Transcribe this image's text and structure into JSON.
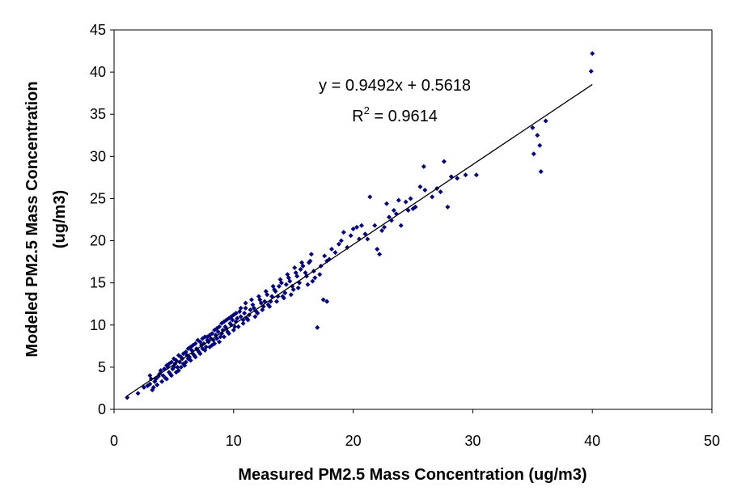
{
  "chart_data": {
    "type": "scatter",
    "title": "",
    "xlabel": "Measured PM2.5 Mass Concentration (ug/m3)",
    "ylabel_line1": "Modeled PM2.5 Mass Concentration",
    "ylabel_line2": "(ug/m3)",
    "xlim": [
      0,
      50
    ],
    "ylim": [
      0,
      45
    ],
    "xticks": [
      "0",
      "10",
      "20",
      "30",
      "40",
      "50"
    ],
    "yticks": [
      "0",
      "5",
      "10",
      "15",
      "20",
      "25",
      "30",
      "35",
      "40",
      "45"
    ],
    "grid": false,
    "legend": "none",
    "marker_color": "#000080",
    "trendline": {
      "slope": 0.9492,
      "intercept": 0.5618,
      "x_range": [
        1,
        40
      ],
      "equation": "y = 0.9492x + 0.5618",
      "r2_prefix": "R",
      "r2_exp": "2",
      "r2_suffix": " = 0.9614"
    },
    "points": [
      [
        1.1,
        1.4
      ],
      [
        2.0,
        1.9
      ],
      [
        2.5,
        2.6
      ],
      [
        3.0,
        3.0
      ],
      [
        3.2,
        2.3
      ],
      [
        3.0,
        4.0
      ],
      [
        3.5,
        3.6
      ],
      [
        3.8,
        4.2
      ],
      [
        4.0,
        3.3
      ],
      [
        4.2,
        4.8
      ],
      [
        4.4,
        5.2
      ],
      [
        4.6,
        4.4
      ],
      [
        4.8,
        5.6
      ],
      [
        5.0,
        5.0
      ],
      [
        5.2,
        5.8
      ],
      [
        5.4,
        4.6
      ],
      [
        5.6,
        6.2
      ],
      [
        5.8,
        5.4
      ],
      [
        6.0,
        6.8
      ],
      [
        6.2,
        6.0
      ],
      [
        6.4,
        7.4
      ],
      [
        6.6,
        6.6
      ],
      [
        6.8,
        7.8
      ],
      [
        7.0,
        7.0
      ],
      [
        7.2,
        8.0
      ],
      [
        7.4,
        7.2
      ],
      [
        7.6,
        8.6
      ],
      [
        7.8,
        8.2
      ],
      [
        8.0,
        8.8
      ],
      [
        8.2,
        7.6
      ],
      [
        8.4,
        9.4
      ],
      [
        8.6,
        8.4
      ],
      [
        8.8,
        9.8
      ],
      [
        9.0,
        9.0
      ],
      [
        9.2,
        10.4
      ],
      [
        9.4,
        9.6
      ],
      [
        9.6,
        10.8
      ],
      [
        9.8,
        10.0
      ],
      [
        10.0,
        11.2
      ],
      [
        10.2,
        10.4
      ],
      [
        10.5,
        11.6
      ],
      [
        10.8,
        10.6
      ],
      [
        11.0,
        12.0
      ],
      [
        11.3,
        11.2
      ],
      [
        11.6,
        12.4
      ],
      [
        11.9,
        11.6
      ],
      [
        12.2,
        13.0
      ],
      [
        12.5,
        12.2
      ],
      [
        12.8,
        13.6
      ],
      [
        13.1,
        12.8
      ],
      [
        13.4,
        14.2
      ],
      [
        13.7,
        13.4
      ],
      [
        14.0,
        15.0
      ],
      [
        14.3,
        13.8
      ],
      [
        14.6,
        15.6
      ],
      [
        14.9,
        14.6
      ],
      [
        15.2,
        16.2
      ],
      [
        15.5,
        15.0
      ],
      [
        15.8,
        17.0
      ],
      [
        16.1,
        15.8
      ],
      [
        16.4,
        17.6
      ],
      [
        16.7,
        16.4
      ],
      [
        17.0,
        9.7
      ],
      [
        17.5,
        13.0
      ],
      [
        17.8,
        12.8
      ],
      [
        18.0,
        17.8
      ],
      [
        18.5,
        18.6
      ],
      [
        19.0,
        20.0
      ],
      [
        19.5,
        19.2
      ],
      [
        20.0,
        21.4
      ],
      [
        20.5,
        20.2
      ],
      [
        21.0,
        20.8
      ],
      [
        21.4,
        25.2
      ],
      [
        21.8,
        21.8
      ],
      [
        22.0,
        19.0
      ],
      [
        22.4,
        21.2
      ],
      [
        22.8,
        24.4
      ],
      [
        23.2,
        22.4
      ],
      [
        23.6,
        23.2
      ],
      [
        24.0,
        21.8
      ],
      [
        24.4,
        24.6
      ],
      [
        24.8,
        25.0
      ],
      [
        25.2,
        24.0
      ],
      [
        25.6,
        26.4
      ],
      [
        25.9,
        28.8
      ],
      [
        26.6,
        25.2
      ],
      [
        27.0,
        26.2
      ],
      [
        27.6,
        29.4
      ],
      [
        27.9,
        24.0
      ],
      [
        28.7,
        27.4
      ],
      [
        29.4,
        27.8
      ],
      [
        30.3,
        27.8
      ],
      [
        35.0,
        33.4
      ],
      [
        35.1,
        30.3
      ],
      [
        35.4,
        32.5
      ],
      [
        35.6,
        31.3
      ],
      [
        35.7,
        28.2
      ],
      [
        36.1,
        34.2
      ],
      [
        39.9,
        40.1
      ],
      [
        40.0,
        42.2
      ],
      [
        3.4,
        3.3
      ],
      [
        3.6,
        2.9
      ],
      [
        4.1,
        4.0
      ],
      [
        4.3,
        3.7
      ],
      [
        4.5,
        5.0
      ],
      [
        4.7,
        4.2
      ],
      [
        4.9,
        4.8
      ],
      [
        5.1,
        5.4
      ],
      [
        5.3,
        5.0
      ],
      [
        5.5,
        5.6
      ],
      [
        5.7,
        6.0
      ],
      [
        5.9,
        5.2
      ],
      [
        6.1,
        6.4
      ],
      [
        6.3,
        6.2
      ],
      [
        6.5,
        7.0
      ],
      [
        6.7,
        6.4
      ],
      [
        6.9,
        7.2
      ],
      [
        7.1,
        6.8
      ],
      [
        7.3,
        7.6
      ],
      [
        7.5,
        7.8
      ],
      [
        7.7,
        7.4
      ],
      [
        7.9,
        8.0
      ],
      [
        8.1,
        8.4
      ],
      [
        8.3,
        8.2
      ],
      [
        8.5,
        8.8
      ],
      [
        8.7,
        9.2
      ],
      [
        8.9,
        8.6
      ],
      [
        9.1,
        9.4
      ],
      [
        9.3,
        9.8
      ],
      [
        9.5,
        9.2
      ],
      [
        9.7,
        10.2
      ],
      [
        9.9,
        10.6
      ],
      [
        10.1,
        9.8
      ],
      [
        10.3,
        10.8
      ],
      [
        10.6,
        11.0
      ],
      [
        10.9,
        11.4
      ],
      [
        11.1,
        10.8
      ],
      [
        11.4,
        11.8
      ],
      [
        11.7,
        12.0
      ],
      [
        12.0,
        11.4
      ],
      [
        12.3,
        12.6
      ],
      [
        12.6,
        12.8
      ],
      [
        12.9,
        12.4
      ],
      [
        13.2,
        13.4
      ],
      [
        13.5,
        14.0
      ],
      [
        13.8,
        14.6
      ],
      [
        14.1,
        13.4
      ],
      [
        14.4,
        14.8
      ],
      [
        14.7,
        15.2
      ],
      [
        15.0,
        14.2
      ],
      [
        15.3,
        15.8
      ],
      [
        15.6,
        16.6
      ],
      [
        16.0,
        16.2
      ],
      [
        16.3,
        17.4
      ],
      [
        16.6,
        15.2
      ],
      [
        17.2,
        16.0
      ],
      [
        17.6,
        18.2
      ],
      [
        18.2,
        19.0
      ],
      [
        18.8,
        19.6
      ],
      [
        19.2,
        21.0
      ],
      [
        19.8,
        20.6
      ],
      [
        20.3,
        21.6
      ],
      [
        20.7,
        21.8
      ],
      [
        21.2,
        20.2
      ],
      [
        22.2,
        18.4
      ],
      [
        22.6,
        21.6
      ],
      [
        23.0,
        22.8
      ],
      [
        23.4,
        23.6
      ],
      [
        23.8,
        24.8
      ],
      [
        24.6,
        23.6
      ],
      [
        25.0,
        23.8
      ],
      [
        26.0,
        26.0
      ],
      [
        27.3,
        25.8
      ],
      [
        28.2,
        27.6
      ],
      [
        2.8,
        2.8
      ],
      [
        3.1,
        3.6
      ],
      [
        3.3,
        2.6
      ],
      [
        3.7,
        3.9
      ],
      [
        3.9,
        4.6
      ],
      [
        4.4,
        3.6
      ],
      [
        4.6,
        5.4
      ],
      [
        4.8,
        4.0
      ],
      [
        5.0,
        6.0
      ],
      [
        5.2,
        4.4
      ],
      [
        5.4,
        6.4
      ],
      [
        5.6,
        5.0
      ],
      [
        5.8,
        6.6
      ],
      [
        6.0,
        5.6
      ],
      [
        6.2,
        7.2
      ],
      [
        6.4,
        5.8
      ],
      [
        6.6,
        7.6
      ],
      [
        6.8,
        6.2
      ],
      [
        7.0,
        8.2
      ],
      [
        7.2,
        6.6
      ],
      [
        7.4,
        8.4
      ],
      [
        7.6,
        7.0
      ],
      [
        7.8,
        8.6
      ],
      [
        8.0,
        7.4
      ],
      [
        8.2,
        9.0
      ],
      [
        8.4,
        7.8
      ],
      [
        8.6,
        9.6
      ],
      [
        8.8,
        8.0
      ],
      [
        9.0,
        10.2
      ],
      [
        9.2,
        8.6
      ],
      [
        9.4,
        10.6
      ],
      [
        9.6,
        9.0
      ],
      [
        9.8,
        11.0
      ],
      [
        10.0,
        9.4
      ],
      [
        10.2,
        11.4
      ],
      [
        10.4,
        9.8
      ],
      [
        10.6,
        12.0
      ],
      [
        10.8,
        10.2
      ],
      [
        11.0,
        12.6
      ],
      [
        11.2,
        10.6
      ],
      [
        11.5,
        13.0
      ],
      [
        11.8,
        11.0
      ],
      [
        12.1,
        13.4
      ],
      [
        12.4,
        11.8
      ],
      [
        12.7,
        14.0
      ],
      [
        13.0,
        12.2
      ],
      [
        13.3,
        14.6
      ],
      [
        13.6,
        12.8
      ],
      [
        13.9,
        15.4
      ],
      [
        14.2,
        13.2
      ],
      [
        14.5,
        16.0
      ],
      [
        14.8,
        13.6
      ],
      [
        15.1,
        16.8
      ],
      [
        15.4,
        14.4
      ],
      [
        15.7,
        17.4
      ],
      [
        16.2,
        14.8
      ],
      [
        16.5,
        18.4
      ],
      [
        16.8,
        15.6
      ],
      [
        17.3,
        17.0
      ],
      [
        17.8,
        17.6
      ]
    ]
  }
}
